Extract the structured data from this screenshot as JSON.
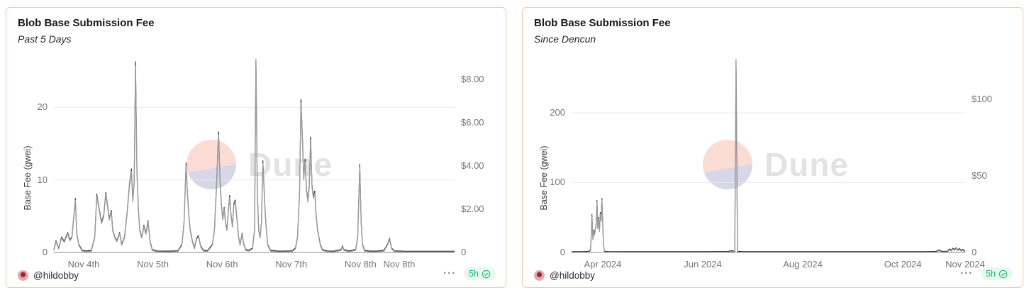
{
  "page": {
    "background": "#ffffff"
  },
  "panels": [
    {
      "title": "Blob Base Submission Fee",
      "subtitle": "Past 5 Days",
      "watermark": "Dune",
      "footer": {
        "author_handle": "@hildobby",
        "menu_glyph": "···",
        "badge": {
          "label": "5h",
          "icon": "check-circle"
        }
      }
    },
    {
      "title": "Blob Base Submission Fee",
      "subtitle": "Since Dencun",
      "watermark": "Dune",
      "footer": {
        "author_handle": "@hildobby",
        "menu_glyph": "···",
        "badge": {
          "label": "5h",
          "icon": "check-circle"
        }
      }
    }
  ],
  "colors": {
    "card_border": "#f4c5ae",
    "series_gwei": "#9b9b9b",
    "series_usd": "#1e1e1e",
    "grid": "#e9e9e9",
    "axis_line": "#8a8a8a",
    "tick_text": "#757575",
    "badge_text": "#12b76a",
    "badge_bg": "#e8f8ef",
    "watermark_pink": "#fbdcd5",
    "watermark_lavender": "#d8d7e7",
    "watermark_text": "#e2e2e2"
  },
  "chart_data": [
    {
      "type": "line",
      "title": "Blob Base Submission Fee",
      "subtitle": "Past 5 Days",
      "ylabel": "Base Fee (gwei)",
      "x_unit": "days since Nov 3 2024 00:00",
      "xlim": [
        0.57,
        6.36
      ],
      "ylim_left": [
        0,
        26.6
      ],
      "ylim_right": [
        0,
        8.9
      ],
      "grid": "horizontal",
      "legend": "none",
      "usd_per_gwei": 0.334,
      "yticks_left": [
        {
          "v": 0,
          "label": "0"
        },
        {
          "v": 10,
          "label": "10"
        },
        {
          "v": 20,
          "label": "20"
        }
      ],
      "yticks_right": [
        {
          "v": 0,
          "label": "0"
        },
        {
          "v": 2,
          "label": "$2.00"
        },
        {
          "v": 4,
          "label": "$4.00"
        },
        {
          "v": 6,
          "label": "$6.00"
        },
        {
          "v": 8,
          "label": "$8.00"
        }
      ],
      "xticks": [
        {
          "v": 1,
          "label": "Nov 4th"
        },
        {
          "v": 2,
          "label": "Nov 5th"
        },
        {
          "v": 3,
          "label": "Nov 6th"
        },
        {
          "v": 4,
          "label": "Nov 7th"
        },
        {
          "v": 5,
          "label": "Nov 8th"
        },
        {
          "v": 5.56,
          "label": "Nov 8th"
        }
      ],
      "series": [
        {
          "name": "Base Fee (gwei)",
          "axis": "left",
          "color": "#9b9b9b"
        },
        {
          "name": "Base Fee (USD)",
          "axis": "right",
          "color": "#1e1e1e",
          "note": "overlaps gwei line, visible at peak tips"
        }
      ],
      "points": [
        [
          0.57,
          0.3
        ],
        [
          0.6,
          1.5
        ],
        [
          0.64,
          0.5
        ],
        [
          0.68,
          2.0
        ],
        [
          0.72,
          1.4
        ],
        [
          0.77,
          2.6
        ],
        [
          0.8,
          1.6
        ],
        [
          0.83,
          2.0
        ],
        [
          0.88,
          7.2
        ],
        [
          0.9,
          2.5
        ],
        [
          0.93,
          1.0
        ],
        [
          0.98,
          0.2
        ],
        [
          1.03,
          0.1
        ],
        [
          1.11,
          0.15
        ],
        [
          1.16,
          2.0
        ],
        [
          1.19,
          7.8
        ],
        [
          1.23,
          5.5
        ],
        [
          1.26,
          4.0
        ],
        [
          1.29,
          5.0
        ],
        [
          1.32,
          8.0
        ],
        [
          1.35,
          6.0
        ],
        [
          1.37,
          4.5
        ],
        [
          1.4,
          5.6
        ],
        [
          1.42,
          3.0
        ],
        [
          1.45,
          2.0
        ],
        [
          1.48,
          1.5
        ],
        [
          1.52,
          2.6
        ],
        [
          1.55,
          1.0
        ],
        [
          1.59,
          2.0
        ],
        [
          1.63,
          5.5
        ],
        [
          1.66,
          9.0
        ],
        [
          1.69,
          11.2
        ],
        [
          1.71,
          7.0
        ],
        [
          1.73,
          9.5
        ],
        [
          1.75,
          25.7
        ],
        [
          1.77,
          11.0
        ],
        [
          1.79,
          6.0
        ],
        [
          1.81,
          3.0
        ],
        [
          1.84,
          2.0
        ],
        [
          1.87,
          3.6
        ],
        [
          1.9,
          2.5
        ],
        [
          1.93,
          4.2
        ],
        [
          1.96,
          1.5
        ],
        [
          1.99,
          0.3
        ],
        [
          2.06,
          0.1
        ],
        [
          2.16,
          0.08
        ],
        [
          2.26,
          0.08
        ],
        [
          2.36,
          0.12
        ],
        [
          2.42,
          1.0
        ],
        [
          2.45,
          4.0
        ],
        [
          2.48,
          12.0
        ],
        [
          2.5,
          8.0
        ],
        [
          2.52,
          5.0
        ],
        [
          2.54,
          3.0
        ],
        [
          2.57,
          1.5
        ],
        [
          2.6,
          0.5
        ],
        [
          2.63,
          1.8
        ],
        [
          2.66,
          2.2
        ],
        [
          2.69,
          0.8
        ],
        [
          2.73,
          0.2
        ],
        [
          2.79,
          0.15
        ],
        [
          2.86,
          1.0
        ],
        [
          2.89,
          3.0
        ],
        [
          2.92,
          9.0
        ],
        [
          2.95,
          16.2
        ],
        [
          2.97,
          10.0
        ],
        [
          2.99,
          6.5
        ],
        [
          3.01,
          4.5
        ],
        [
          3.03,
          6.0
        ],
        [
          3.05,
          4.0
        ],
        [
          3.07,
          3.0
        ],
        [
          3.09,
          5.5
        ],
        [
          3.11,
          7.6
        ],
        [
          3.13,
          5.0
        ],
        [
          3.15,
          3.5
        ],
        [
          3.17,
          6.5
        ],
        [
          3.19,
          7.0
        ],
        [
          3.22,
          4.0
        ],
        [
          3.24,
          2.0
        ],
        [
          3.26,
          1.0
        ],
        [
          3.29,
          2.5
        ],
        [
          3.31,
          1.2
        ],
        [
          3.34,
          0.3
        ],
        [
          3.39,
          0.2
        ],
        [
          3.44,
          0.5
        ],
        [
          3.47,
          3.0
        ],
        [
          3.49,
          26.5
        ],
        [
          3.51,
          8.0
        ],
        [
          3.53,
          3.0
        ],
        [
          3.55,
          2.0
        ],
        [
          3.57,
          4.0
        ],
        [
          3.59,
          12.3
        ],
        [
          3.62,
          6.0
        ],
        [
          3.64,
          3.0
        ],
        [
          3.66,
          1.0
        ],
        [
          3.7,
          0.2
        ],
        [
          3.8,
          0.08
        ],
        [
          3.9,
          0.08
        ],
        [
          4.01,
          0.12
        ],
        [
          4.06,
          0.5
        ],
        [
          4.09,
          2.0
        ],
        [
          4.12,
          8.0
        ],
        [
          4.14,
          20.6
        ],
        [
          4.16,
          16.0
        ],
        [
          4.18,
          10.0
        ],
        [
          4.2,
          12.5
        ],
        [
          4.22,
          8.5
        ],
        [
          4.24,
          7.0
        ],
        [
          4.26,
          9.0
        ],
        [
          4.28,
          15.5
        ],
        [
          4.3,
          9.0
        ],
        [
          4.32,
          7.5
        ],
        [
          4.34,
          8.2
        ],
        [
          4.36,
          5.0
        ],
        [
          4.38,
          3.0
        ],
        [
          4.42,
          1.0
        ],
        [
          4.45,
          0.3
        ],
        [
          4.52,
          0.1
        ],
        [
          4.62,
          0.08
        ],
        [
          4.72,
          0.3
        ],
        [
          4.74,
          0.8
        ],
        [
          4.76,
          0.3
        ],
        [
          4.83,
          0.1
        ],
        [
          4.93,
          0.3
        ],
        [
          4.96,
          2.0
        ],
        [
          4.99,
          11.8
        ],
        [
          5.01,
          4.0
        ],
        [
          5.03,
          1.0
        ],
        [
          5.06,
          0.2
        ],
        [
          5.13,
          0.08
        ],
        [
          5.24,
          0.08
        ],
        [
          5.34,
          0.2
        ],
        [
          5.39,
          1.0
        ],
        [
          5.42,
          1.8
        ],
        [
          5.45,
          0.5
        ],
        [
          5.49,
          0.12
        ],
        [
          5.65,
          0.06
        ],
        [
          5.85,
          0.06
        ],
        [
          6.06,
          0.06
        ],
        [
          6.36,
          0.06
        ]
      ]
    },
    {
      "type": "line",
      "title": "Blob Base Submission Fee",
      "subtitle": "Since Dencun",
      "ylabel": "Base Fee (gwei)",
      "x_unit": "days since Mar 13 2024 (Dencun)",
      "xlim": [
        0,
        240
      ],
      "ylim_left": [
        0,
        276
      ],
      "ylim_right": [
        0,
        126
      ],
      "grid": "horizontal",
      "legend": "none",
      "usd_per_gwei": 0.456,
      "yticks_left": [
        {
          "v": 0,
          "label": "0"
        },
        {
          "v": 100,
          "label": "100"
        },
        {
          "v": 200,
          "label": "200"
        }
      ],
      "yticks_right": [
        {
          "v": 0,
          "label": "0"
        },
        {
          "v": 50,
          "label": "$50"
        },
        {
          "v": 100,
          "label": "$100"
        }
      ],
      "xticks": [
        {
          "v": 19,
          "label": "Apr 2024"
        },
        {
          "v": 80,
          "label": "Jun 2024"
        },
        {
          "v": 141,
          "label": "Aug 2024"
        },
        {
          "v": 202,
          "label": "Oct 2024"
        },
        {
          "v": 240,
          "label": "Nov 2024"
        }
      ],
      "series": [
        {
          "name": "Base Fee (gwei)",
          "axis": "left",
          "color": "#9b9b9b"
        },
        {
          "name": "Base Fee (USD)",
          "axis": "right",
          "color": "#1e1e1e",
          "note": "overlaps gwei line, visible at peak tips"
        }
      ],
      "points": [
        [
          0,
          0.1
        ],
        [
          6,
          0.15
        ],
        [
          10,
          0.3
        ],
        [
          11.5,
          2
        ],
        [
          12,
          25
        ],
        [
          12.4,
          52
        ],
        [
          13,
          18
        ],
        [
          13.5,
          30
        ],
        [
          14,
          25
        ],
        [
          15,
          40
        ],
        [
          15.5,
          72
        ],
        [
          16,
          34
        ],
        [
          16.5,
          48
        ],
        [
          17,
          30
        ],
        [
          17.5,
          55
        ],
        [
          18,
          45
        ],
        [
          18.5,
          75
        ],
        [
          19,
          40
        ],
        [
          19.5,
          10
        ],
        [
          20,
          0.6
        ],
        [
          22,
          0.2
        ],
        [
          35,
          0.12
        ],
        [
          55,
          0.12
        ],
        [
          75,
          0.12
        ],
        [
          95,
          0.2
        ],
        [
          98,
          1.5
        ],
        [
          99.5,
          0.3
        ],
        [
          100.3,
          276
        ],
        [
          101.2,
          0.6
        ],
        [
          105,
          0.15
        ],
        [
          130,
          0.1
        ],
        [
          160,
          0.1
        ],
        [
          190,
          0.1
        ],
        [
          215,
          0.15
        ],
        [
          222,
          0.3
        ],
        [
          224,
          2.5
        ],
        [
          226,
          0.4
        ],
        [
          229,
          0.6
        ],
        [
          230.5,
          4
        ],
        [
          231.5,
          2
        ],
        [
          232.5,
          5
        ],
        [
          233.5,
          3
        ],
        [
          234.5,
          5.5
        ],
        [
          235.5,
          2.5
        ],
        [
          236.5,
          4.5
        ],
        [
          237.5,
          2
        ],
        [
          238.5,
          3.5
        ],
        [
          239.5,
          1.5
        ],
        [
          240,
          0.8
        ]
      ]
    }
  ]
}
